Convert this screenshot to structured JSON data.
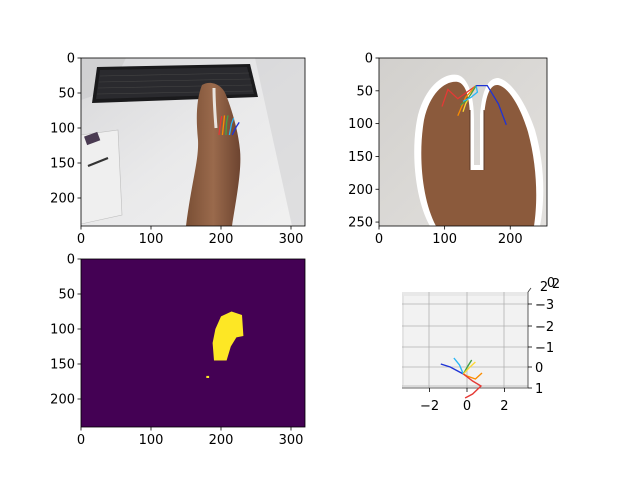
{
  "chart_data": [
    {
      "type": "image",
      "xlim": [
        0,
        320
      ],
      "ylim": [
        240,
        0
      ],
      "x_ticks": [
        0,
        100,
        200,
        300
      ],
      "y_ticks": [
        0,
        50,
        100,
        150,
        200
      ],
      "x_tick_labels": [
        "0",
        "100",
        "200",
        "300"
      ],
      "y_tick_labels": [
        "0",
        "50",
        "100",
        "150",
        "200"
      ],
      "content": "hand-on-desk-photo",
      "keypoints": [
        {
          "color": "#e53935",
          "points": [
            [
              197,
              110
            ],
            [
              199,
              95
            ],
            [
              201,
              83
            ]
          ]
        },
        {
          "color": "#fb8c00",
          "points": [
            [
              202,
              110
            ],
            [
              204,
              92
            ],
            [
              205,
              82
            ]
          ]
        },
        {
          "color": "#43a047",
          "points": [
            [
              207,
              110
            ],
            [
              208,
              92
            ],
            [
              210,
              82
            ]
          ]
        },
        {
          "color": "#29b6f6",
          "points": [
            [
              212,
              110
            ],
            [
              215,
              94
            ],
            [
              218,
              86
            ]
          ]
        },
        {
          "color": "#1e33d6",
          "points": [
            [
              216,
              110
            ],
            [
              222,
              98
            ],
            [
              226,
              92
            ]
          ]
        }
      ]
    },
    {
      "type": "image",
      "xlim": [
        0,
        256
      ],
      "ylim": [
        256,
        0
      ],
      "x_ticks": [
        0,
        100,
        200
      ],
      "y_ticks": [
        0,
        50,
        100,
        150,
        200,
        250
      ],
      "x_tick_labels": [
        "0",
        "100",
        "200"
      ],
      "y_tick_labels": [
        "0",
        "50",
        "100",
        "150",
        "200",
        "250"
      ],
      "content": "hand-crop-photo",
      "keypoints": [
        {
          "color": "#e53935",
          "points": [
            [
              148,
              42
            ],
            [
              120,
              62
            ],
            [
              105,
              48
            ],
            [
              96,
              74
            ]
          ]
        },
        {
          "color": "#fb8c00",
          "points": [
            [
              148,
              42
            ],
            [
              132,
              60
            ],
            [
              126,
              74
            ],
            [
              120,
              88
            ]
          ]
        },
        {
          "color": "#fdd835",
          "points": [
            [
              148,
              42
            ],
            [
              138,
              58
            ],
            [
              132,
              70
            ],
            [
              128,
              82
            ]
          ]
        },
        {
          "color": "#43a047",
          "points": [
            [
              148,
              42
            ],
            [
              140,
              55
            ],
            [
              134,
              64
            ],
            [
              124,
              72
            ]
          ]
        },
        {
          "color": "#29b6f6",
          "points": [
            [
              148,
              42
            ],
            [
              150,
              52
            ],
            [
              140,
              60
            ],
            [
              128,
              66
            ]
          ]
        },
        {
          "color": "#1e33d6",
          "points": [
            [
              148,
              42
            ],
            [
              165,
              42
            ],
            [
              182,
              70
            ],
            [
              194,
              102
            ]
          ]
        }
      ]
    },
    {
      "type": "heatmap",
      "xlim": [
        0,
        320
      ],
      "ylim": [
        240,
        0
      ],
      "x_ticks": [
        0,
        100,
        200,
        300
      ],
      "y_ticks": [
        0,
        50,
        100,
        150,
        200
      ],
      "x_tick_labels": [
        "0",
        "100",
        "200",
        "300"
      ],
      "y_tick_labels": [
        "0",
        "50",
        "100",
        "150",
        "200"
      ],
      "background_color": "#440154",
      "mask_color": "#fde725",
      "mask_regions": [
        [
          [
            190,
            145
          ],
          [
            188,
            120
          ],
          [
            192,
            100
          ],
          [
            200,
            82
          ],
          [
            215,
            75
          ],
          [
            230,
            80
          ],
          [
            232,
            110
          ],
          [
            222,
            112
          ],
          [
            214,
            125
          ],
          [
            208,
            145
          ]
        ],
        [
          [
            179,
            167
          ],
          [
            183,
            167
          ],
          [
            183,
            170
          ],
          [
            179,
            170
          ]
        ]
      ]
    },
    {
      "type": "scatter3d",
      "x_ticks": [
        -2,
        0,
        2
      ],
      "x_tick_labels": [
        "−2",
        "0",
        "2"
      ],
      "right_axis_labels": [
        "−3",
        "−2",
        "−1",
        "0",
        "1"
      ],
      "top_axis_labels": [
        "2",
        "0",
        "2"
      ],
      "skeleton": [
        {
          "color": "#1e33d6",
          "points": [
            [
              -0.2,
              0.35
            ],
            [
              -0.9,
              0.0
            ],
            [
              -1.4,
              -0.15
            ]
          ]
        },
        {
          "color": "#29b6f6",
          "points": [
            [
              -0.2,
              0.35
            ],
            [
              -0.4,
              -0.1
            ],
            [
              -0.7,
              -0.45
            ]
          ]
        },
        {
          "color": "#43a047",
          "points": [
            [
              -0.2,
              0.35
            ],
            [
              0.05,
              -0.05
            ],
            [
              0.25,
              -0.35
            ]
          ]
        },
        {
          "color": "#fdd835",
          "points": [
            [
              -0.2,
              0.35
            ],
            [
              0.1,
              0.05
            ],
            [
              0.45,
              -0.25
            ]
          ]
        },
        {
          "color": "#fb8c00",
          "points": [
            [
              -0.2,
              0.35
            ],
            [
              0.0,
              0.45
            ],
            [
              0.45,
              0.6
            ],
            [
              0.8,
              0.3
            ]
          ]
        },
        {
          "color": "#e53935",
          "points": [
            [
              -0.2,
              0.35
            ],
            [
              0.3,
              0.7
            ],
            [
              0.75,
              0.95
            ],
            [
              0.3,
              1.35
            ],
            [
              -0.1,
              1.55
            ]
          ]
        }
      ]
    }
  ]
}
